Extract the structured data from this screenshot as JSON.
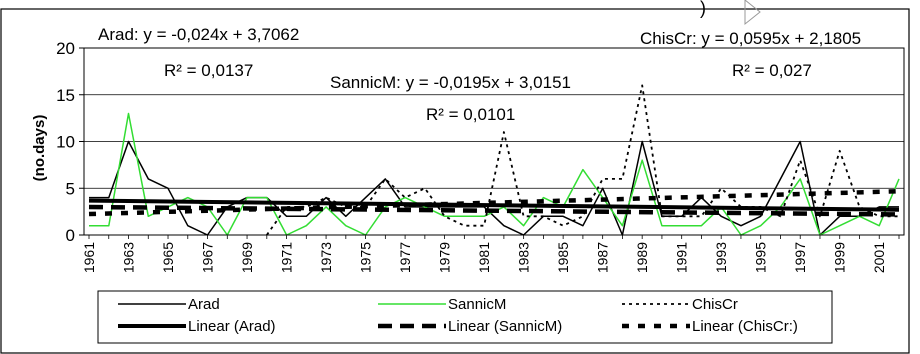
{
  "chart_data": {
    "type": "line",
    "title": "",
    "xlabel": "",
    "ylabel": "(no.days)",
    "ylim": [
      0,
      20
    ],
    "yticks": [
      0,
      5,
      10,
      15,
      20
    ],
    "xlim": [
      1961,
      2002
    ],
    "xtick_labels": [
      "1961",
      "1963",
      "1965",
      "1967",
      "1969",
      "1971",
      "1973",
      "1975",
      "1977",
      "1979",
      "1981",
      "1983",
      "1985",
      "1987",
      "1989",
      "1991",
      "1993",
      "1995",
      "1997",
      "1999",
      "2001"
    ],
    "grid": "horizontal",
    "legend_position": "bottom",
    "x": [
      1961,
      1962,
      1963,
      1964,
      1965,
      1966,
      1967,
      1968,
      1969,
      1970,
      1971,
      1972,
      1973,
      1974,
      1975,
      1976,
      1977,
      1978,
      1979,
      1980,
      1981,
      1982,
      1983,
      1984,
      1985,
      1986,
      1987,
      1988,
      1989,
      1990,
      1991,
      1992,
      1993,
      1994,
      1995,
      1996,
      1997,
      1998,
      1999,
      2000,
      2001,
      2002
    ],
    "series": [
      {
        "name": "Arad",
        "color": "#000000",
        "style": "solid-thin",
        "values": [
          4,
          4,
          10,
          6,
          5,
          1,
          0,
          3,
          4,
          4,
          2,
          2,
          4,
          2,
          4,
          6,
          3,
          3,
          3,
          3,
          3,
          1,
          0,
          2,
          2,
          1,
          5,
          0,
          10,
          2,
          2,
          4,
          2,
          1,
          2,
          6,
          10,
          0,
          2,
          2,
          3,
          3
        ]
      },
      {
        "name": "SannicM",
        "color": "#33dd33",
        "style": "solid-thin",
        "values": [
          1,
          1,
          13,
          2,
          3,
          4,
          3,
          0,
          4,
          4,
          0,
          1,
          3,
          1,
          0,
          3,
          4,
          3,
          2,
          2,
          2,
          3,
          1,
          4,
          3,
          7,
          4,
          1,
          8,
          1,
          1,
          1,
          3,
          0,
          1,
          3,
          6,
          0,
          1,
          2,
          1,
          6
        ]
      },
      {
        "name": "ChisCr",
        "color": "#000000",
        "style": "dotted",
        "values": [
          null,
          null,
          null,
          null,
          null,
          null,
          null,
          null,
          null,
          0,
          3,
          3,
          4,
          3,
          3,
          6,
          4,
          5,
          2,
          1,
          1,
          11,
          2,
          2,
          1,
          2,
          6,
          6,
          16,
          2,
          2,
          2,
          5,
          3,
          3,
          2,
          8,
          2,
          9,
          3,
          2,
          2
        ]
      },
      {
        "name": "Linear (Arad)",
        "color": "#000000",
        "style": "trend-thick",
        "slope": -0.024,
        "intercept": 3.7062
      },
      {
        "name": "Linear (SannicM)",
        "color": "#000000",
        "style": "trend-dashed",
        "slope": -0.0195,
        "intercept": 3.0151
      },
      {
        "name": "Linear (ChisCr:)",
        "color": "#000000",
        "style": "trend-dotted",
        "slope": 0.0595,
        "intercept": 2.1805
      }
    ],
    "annotations": {
      "arad_eq": "Arad: y = -0,024x + 3,7062",
      "arad_r2": "R² = 0,0137",
      "sannic_eq": "SannicM: y = -0,0195x + 3,0151",
      "sannic_r2": "R² = 0,0101",
      "chis_eq": "ChisCr: y = 0,0595x + 2,1805",
      "chis_r2": "R² = 0,027",
      "top_partial": ")"
    }
  }
}
